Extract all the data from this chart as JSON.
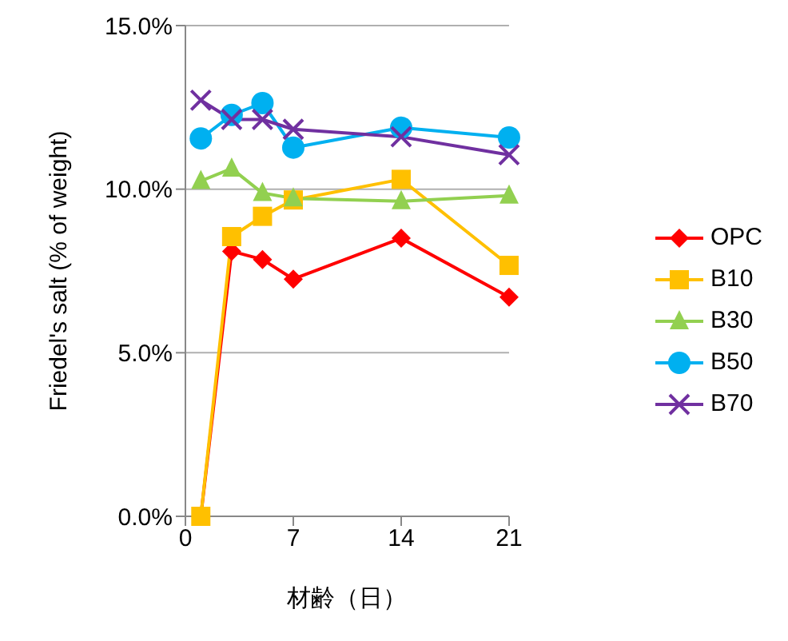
{
  "chart_data": {
    "type": "line",
    "xlabel": "材齢（日）",
    "ylabel": "Friedel's salt (% of weight)",
    "x": [
      1,
      3,
      5,
      7,
      14,
      21
    ],
    "series": [
      {
        "name": "OPC",
        "color": "#ff0000",
        "marker": "diamond",
        "values": [
          0,
          8.1,
          7.85,
          7.25,
          8.5,
          6.7
        ]
      },
      {
        "name": "B10",
        "color": "#ffc000",
        "marker": "square",
        "values": [
          0,
          8.55,
          9.17,
          9.67,
          10.3,
          7.67
        ]
      },
      {
        "name": "B30",
        "color": "#92d050",
        "marker": "triangle",
        "values": [
          10.25,
          10.63,
          9.88,
          9.72,
          9.63,
          9.8
        ]
      },
      {
        "name": "B50",
        "color": "#00b0f0",
        "marker": "circle",
        "values": [
          11.55,
          12.27,
          12.63,
          11.27,
          11.88,
          11.58
        ]
      },
      {
        "name": "B70",
        "color": "#7030a0",
        "marker": "cross",
        "values": [
          12.72,
          12.13,
          12.13,
          11.83,
          11.6,
          11.05
        ]
      }
    ],
    "xlim": [
      0,
      21
    ],
    "xticks": [
      0,
      7,
      14,
      21
    ],
    "ylim": [
      0,
      15
    ],
    "yticks": [
      {
        "value": 0,
        "label": "0.0%"
      },
      {
        "value": 5,
        "label": "5.0%"
      },
      {
        "value": 10,
        "label": "10.0%"
      },
      {
        "value": 15,
        "label": "15.0%"
      }
    ],
    "grid": "y",
    "legend": "right"
  }
}
